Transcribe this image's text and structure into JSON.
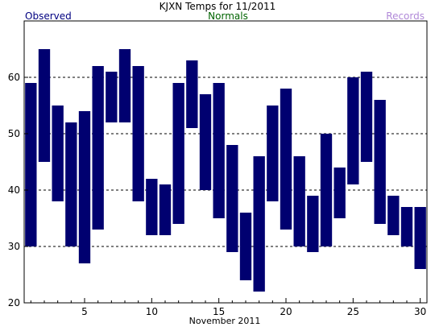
{
  "chart_data": {
    "type": "bar",
    "title": "KJXN Temps for 11/2011",
    "xlabel": "November 2011",
    "ylabel": "",
    "legend": [
      {
        "name": "Observed",
        "color": "#000080",
        "placement": "top-left"
      },
      {
        "name": "Normals",
        "color": "#006400",
        "placement": "top-center"
      },
      {
        "name": "Records",
        "color": "#B088D8",
        "placement": "top-right"
      }
    ],
    "ylim": [
      20,
      70
    ],
    "yticks": [
      20,
      30,
      40,
      50,
      60
    ],
    "xlim": [
      0.5,
      30.5
    ],
    "xticks": [
      5,
      10,
      15,
      20,
      25,
      30
    ],
    "grid": "horizontal dashed at 30, 40, 50, 60",
    "bar_color": "#000070",
    "days": [
      1,
      2,
      3,
      4,
      5,
      6,
      7,
      8,
      9,
      10,
      11,
      12,
      13,
      14,
      15,
      16,
      17,
      18,
      19,
      20,
      21,
      22,
      23,
      24,
      25,
      26,
      27,
      28,
      29,
      30
    ],
    "series": [
      {
        "name": "low",
        "values": [
          30,
          45,
          38,
          30,
          27,
          33,
          52,
          52,
          38,
          32,
          32,
          34,
          51,
          40,
          35,
          29,
          24,
          22,
          38,
          33,
          30,
          29,
          30,
          35,
          41,
          45,
          34,
          32,
          30,
          26
        ]
      },
      {
        "name": "high",
        "values": [
          59,
          65,
          55,
          52,
          54,
          62,
          61,
          65,
          62,
          42,
          41,
          59,
          63,
          57,
          59,
          48,
          36,
          46,
          55,
          58,
          46,
          39,
          50,
          44,
          60,
          61,
          56,
          39,
          37,
          37
        ]
      }
    ]
  }
}
